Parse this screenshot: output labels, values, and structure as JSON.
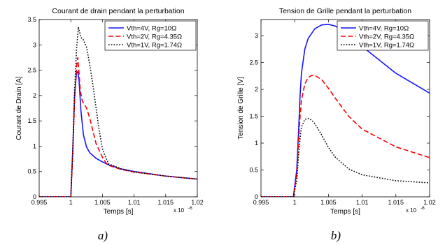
{
  "captions": [
    "a)",
    "b)"
  ],
  "chart_data": [
    {
      "type": "line",
      "title": "Courant de drain pendant la perturbation",
      "xlabel": "Temps [s]",
      "ylabel": "Courant de Drain [A]",
      "x_multiplier_label": "x 10",
      "x_multiplier_exp": "-6",
      "xlim": [
        0.995,
        1.02
      ],
      "ylim": [
        0,
        3.5
      ],
      "xticks": [
        "0.995",
        "1",
        "1.005",
        "1.01",
        "1.015",
        "1.02"
      ],
      "yticks": [
        "0",
        "0.5",
        "1",
        "1.5",
        "2",
        "2.5",
        "3",
        "3.5"
      ],
      "grid": false,
      "legend_position": "top-right",
      "series": [
        {
          "name": "Vth=4V, Rg=10Ω",
          "color": "#1515ff",
          "dash": "solid",
          "x": [
            0.995,
            1.0,
            1.0003,
            1.0006,
            1.0009,
            1.0011,
            1.0013,
            1.0016,
            1.002,
            1.0025,
            1.003,
            1.004,
            1.005,
            1.006,
            1.008,
            1.01,
            1.015,
            1.02
          ],
          "y": [
            0,
            0,
            0.9,
            2.0,
            2.45,
            2.47,
            2.3,
            1.7,
            1.22,
            0.98,
            0.87,
            0.76,
            0.69,
            0.63,
            0.55,
            0.5,
            0.41,
            0.35
          ]
        },
        {
          "name": "Vth=2V, Rg=4.35Ω",
          "color": "#ff0000",
          "dash": "dashed",
          "x": [
            0.995,
            1.0,
            1.0003,
            1.0006,
            1.0009,
            1.0011,
            1.0013,
            1.0015,
            1.0018,
            1.002,
            1.0025,
            1.003,
            1.0035,
            1.004,
            1.005,
            1.0055,
            1.006,
            1.008,
            1.01,
            1.015,
            1.02
          ],
          "y": [
            0,
            0,
            0.8,
            1.9,
            2.55,
            2.75,
            2.45,
            2.1,
            1.9,
            1.85,
            1.75,
            1.55,
            1.3,
            1.05,
            0.78,
            0.68,
            0.62,
            0.54,
            0.49,
            0.41,
            0.35
          ]
        },
        {
          "name": "Vth=1V, Rg=1.74Ω",
          "color": "#000000",
          "dash": "dotted",
          "x": [
            0.995,
            1.0,
            1.0003,
            1.0006,
            1.0009,
            1.0012,
            1.0014,
            1.0016,
            1.0018,
            1.002,
            1.0025,
            1.003,
            1.0035,
            1.004,
            1.0045,
            1.005,
            1.0055,
            1.006,
            1.008,
            1.01,
            1.015,
            1.02
          ],
          "y": [
            0,
            0,
            0.9,
            2.1,
            2.9,
            3.35,
            3.25,
            3.15,
            3.12,
            3.1,
            2.95,
            2.6,
            2.2,
            1.75,
            1.3,
            0.95,
            0.78,
            0.65,
            0.55,
            0.49,
            0.41,
            0.35
          ]
        }
      ]
    },
    {
      "type": "line",
      "title": "Tension de Grille pendant la perturbation",
      "xlabel": "Temps [s]",
      "ylabel": "Tension de Grille [V]",
      "x_multiplier_label": "x 10",
      "x_multiplier_exp": "-6",
      "xlim": [
        0.995,
        1.02
      ],
      "ylim": [
        0,
        3.3
      ],
      "xticks": [
        "0.995",
        "1",
        "1.005",
        "1.01",
        "1.015",
        "1.02"
      ],
      "yticks": [
        "0",
        "0.5",
        "1",
        "1.5",
        "2",
        "2.5",
        "3"
      ],
      "grid": false,
      "legend_position": "top-right",
      "series": [
        {
          "name": "Vth=4V, Rg=10Ω",
          "color": "#1515ff",
          "dash": "solid",
          "x": [
            0.995,
            0.9998,
            1.0003,
            1.0006,
            1.0008,
            1.001,
            1.0015,
            1.002,
            1.003,
            1.004,
            1.005,
            1.006,
            1.008,
            1.01,
            1.012,
            1.015,
            1.02
          ],
          "y": [
            0,
            0,
            0.5,
            1.3,
            1.9,
            2.3,
            2.75,
            2.95,
            3.13,
            3.2,
            3.21,
            3.18,
            3.02,
            2.8,
            2.6,
            2.3,
            1.93
          ]
        },
        {
          "name": "Vth=2V, Rg=4.35Ω",
          "color": "#ff0000",
          "dash": "dashed",
          "x": [
            0.995,
            0.9998,
            1.0003,
            1.0006,
            1.0008,
            1.001,
            1.0015,
            1.002,
            1.0025,
            1.003,
            1.004,
            1.005,
            1.006,
            1.008,
            1.01,
            1.015,
            1.02
          ],
          "y": [
            0,
            0,
            0.4,
            1.1,
            1.5,
            1.8,
            2.1,
            2.22,
            2.26,
            2.26,
            2.18,
            2.02,
            1.84,
            1.5,
            1.26,
            0.93,
            0.73
          ]
        },
        {
          "name": "Vth=1V, Rg=1.74Ω",
          "color": "#000000",
          "dash": "dotted",
          "x": [
            0.995,
            0.9998,
            1.0003,
            1.0006,
            1.0008,
            1.001,
            1.0015,
            1.002,
            1.0025,
            1.003,
            1.004,
            1.005,
            1.006,
            1.008,
            1.01,
            1.015,
            1.02
          ],
          "y": [
            0,
            0,
            0.3,
            0.8,
            1.1,
            1.3,
            1.44,
            1.46,
            1.43,
            1.36,
            1.15,
            0.92,
            0.74,
            0.52,
            0.41,
            0.3,
            0.26
          ]
        }
      ]
    }
  ]
}
